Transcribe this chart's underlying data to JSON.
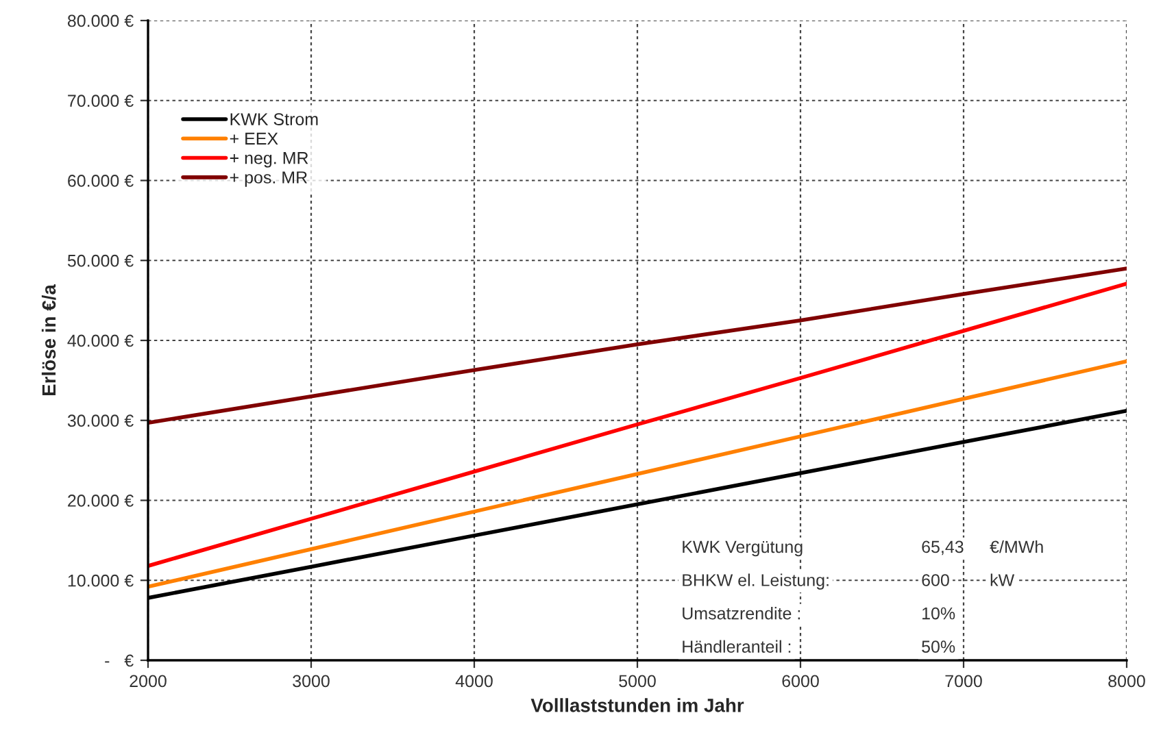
{
  "chart_data": {
    "type": "line",
    "xlabel": "Volllaststunden im Jahr",
    "ylabel": "Erlöse in €/a",
    "x": [
      2000,
      3000,
      4000,
      5000,
      6000,
      7000,
      8000
    ],
    "series": [
      {
        "name": "KWK Strom",
        "color": "#000000",
        "values": [
          7800,
          11700,
          15600,
          19500,
          23400,
          27300,
          31200
        ]
      },
      {
        "name": "+ EEX",
        "color": "#ff8000",
        "values": [
          9200,
          13900,
          18600,
          23300,
          28000,
          32700,
          37400
        ]
      },
      {
        "name": "+ neg. MR",
        "color": "#ff0000",
        "values": [
          11800,
          17700,
          23600,
          29500,
          35300,
          41200,
          47100
        ]
      },
      {
        "name": "+ pos. MR",
        "color": "#800000",
        "values": [
          29700,
          33000,
          36300,
          39500,
          42500,
          45800,
          49000
        ]
      }
    ],
    "xlim": [
      2000,
      8000
    ],
    "xticks": [
      2000,
      3000,
      4000,
      5000,
      6000,
      7000,
      8000
    ],
    "ylim": [
      0,
      80000
    ],
    "yticks": [
      {
        "value": 0,
        "label": "-   €"
      },
      {
        "value": 10000,
        "label": "10.000 €"
      },
      {
        "value": 20000,
        "label": "20.000 €"
      },
      {
        "value": 30000,
        "label": "30.000 €"
      },
      {
        "value": 40000,
        "label": "40.000 €"
      },
      {
        "value": 50000,
        "label": "50.000 €"
      },
      {
        "value": 60000,
        "label": "60.000 €"
      },
      {
        "value": 70000,
        "label": "70.000 €"
      },
      {
        "value": 80000,
        "label": "80.000 €"
      }
    ],
    "annotations": [
      "KWK Vergütung\t65,43\t€/MWh",
      "BHKW el. Leistung:\t600\tkW",
      "Umsatzrendite :\t10%",
      "Händleranteil :\t50%"
    ],
    "grid": true,
    "legend": "top left",
    "marker": "none",
    "line_style": "solid"
  }
}
